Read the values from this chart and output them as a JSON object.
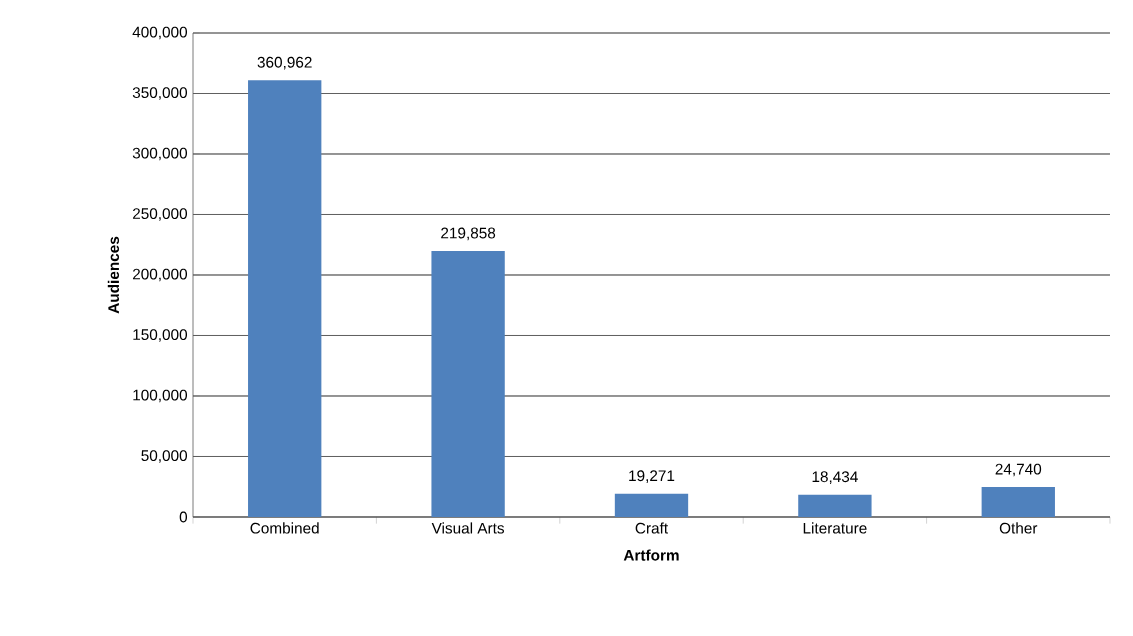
{
  "chart_data": {
    "type": "bar",
    "xlabel": "Artform",
    "ylabel": "Audiences",
    "categories": [
      "Combined",
      "Visual Arts",
      "Craft",
      "Literature",
      "Other"
    ],
    "values": [
      360962,
      219858,
      19271,
      18434,
      24740
    ],
    "value_labels": [
      "360,962",
      "219,858",
      "19,271",
      "18,434",
      "24,740"
    ],
    "color": "#4f81bd",
    "ylim": [
      0,
      400000
    ],
    "yticks": [
      {
        "value": 0,
        "label": "0"
      },
      {
        "value": 50000,
        "label": "50,000"
      },
      {
        "value": 100000,
        "label": "100,000"
      },
      {
        "value": 150000,
        "label": "150,000"
      },
      {
        "value": 200000,
        "label": "200,000"
      },
      {
        "value": 250000,
        "label": "250,000"
      },
      {
        "value": 300000,
        "label": "300,000"
      },
      {
        "value": 350000,
        "label": "350,000"
      },
      {
        "value": 400000,
        "label": "400,000"
      }
    ],
    "grid": "y"
  }
}
